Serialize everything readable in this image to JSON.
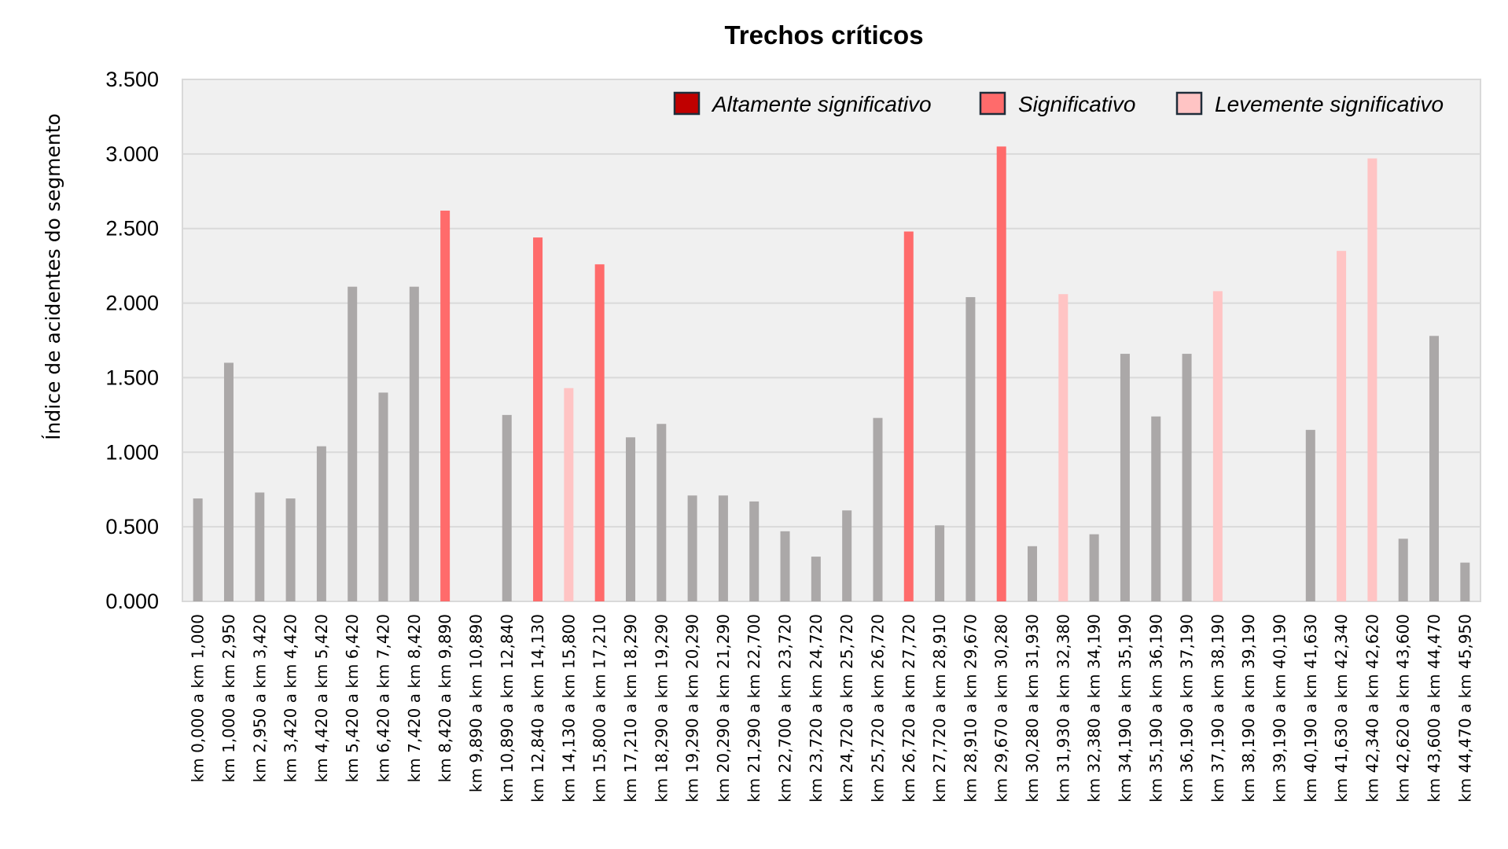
{
  "chart_data": {
    "type": "bar",
    "title": "Trechos críticos",
    "xlabel": "",
    "ylabel": "Índice de acidentes do segmento",
    "ylim": [
      0,
      3.5
    ],
    "yticks": [
      "0.000",
      "0.500",
      "1.000",
      "1.500",
      "2.000",
      "2.500",
      "3.000",
      "3.500"
    ],
    "grid": true,
    "legend_position": "top-right",
    "legend": [
      {
        "key": "alta",
        "label": "Altamente significativo",
        "color": "#c00000"
      },
      {
        "key": "sig",
        "label": "Significativo",
        "color": "#ff6b6b"
      },
      {
        "key": "leve",
        "label": "Levemente significativo",
        "color": "#ffc4c4"
      }
    ],
    "default_color": "#aba8a8",
    "categories": [
      "km 0,000 a km 1,000",
      "km 1,000 a km 2,950",
      "km 2,950 a km 3,420",
      "km 3,420 a km 4,420",
      "km 4,420 a km 5,420",
      "km 5,420 a km 6,420",
      "km 6,420 a km 7,420",
      "km 7,420 a km 8,420",
      "km 8,420 a km 9,890",
      "km 9,890 a km 10,890",
      "km 10,890 a km 12,840",
      "km 12,840 a km 14,130",
      "km 14,130 a km 15,800",
      "km 15,800 a km 17,210",
      "km 17,210 a km 18,290",
      "km 18,290 a km 19,290",
      "km 19,290 a km 20,290",
      "km 20,290 a km 21,290",
      "km 21,290 a km 22,700",
      "km 22,700 a km 23,720",
      "km 23,720 a km 24,720",
      "km 24,720 a km 25,720",
      "km 25,720 a km 26,720",
      "km 26,720 a km 27,720",
      "km 27,720 a km 28,910",
      "km 28,910 a km 29,670",
      "km 29,670 a km 30,280",
      "km 30,280 a km 31,930",
      "km 31,930 a km 32,380",
      "km 32,380 a km 34,190",
      "km 34,190 a km 35,190",
      "km 35,190 a km 36,190",
      "km 36,190 a km 37,190",
      "km 37,190 a km 38,190",
      "km 38,190 a km 39,190",
      "km 39,190 a km 40,190",
      "km 40,190 a km 41,630",
      "km 41,630 a km 42,340",
      "km 42,340 a km 42,620",
      "km 42,620 a km 43,600",
      "km 43,600 a km 44,470",
      "km 44,470 a km 45,950"
    ],
    "values": [
      0.69,
      1.6,
      0.73,
      0.69,
      1.04,
      2.11,
      1.4,
      2.11,
      2.62,
      0,
      1.25,
      2.44,
      1.43,
      2.26,
      1.1,
      1.19,
      0.71,
      0.71,
      0.67,
      0.47,
      0.3,
      0.61,
      1.23,
      2.48,
      0.51,
      2.04,
      3.05,
      0.37,
      2.06,
      0.45,
      1.66,
      1.24,
      1.66,
      2.08,
      0,
      0,
      1.15,
      2.35,
      2.97,
      0.42,
      1.78,
      0.26
    ],
    "classes": [
      "",
      "",
      "",
      "",
      "",
      "",
      "",
      "",
      "sig",
      "",
      "",
      "sig",
      "leve",
      "sig",
      "",
      "",
      "",
      "",
      "",
      "",
      "",
      "",
      "",
      "sig",
      "",
      "",
      "sig",
      "",
      "leve",
      "",
      "",
      "",
      "",
      "leve",
      "",
      "",
      "",
      "leve",
      "leve",
      "",
      "",
      ""
    ]
  }
}
